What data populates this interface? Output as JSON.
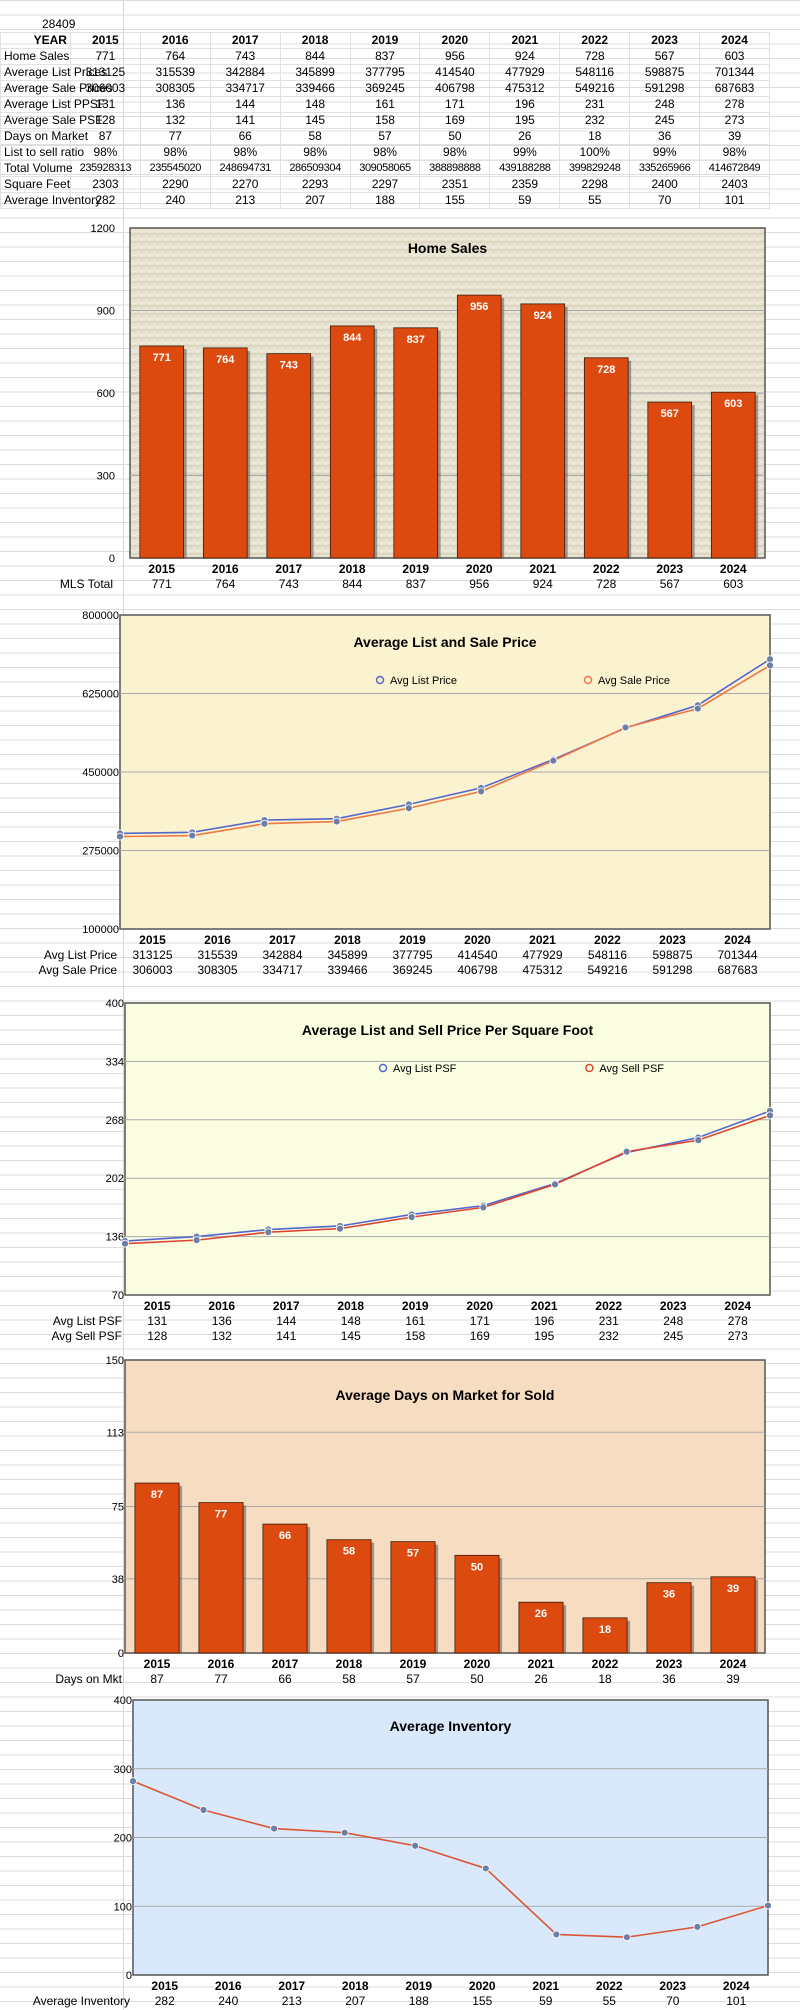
{
  "zip": "28409",
  "table": {
    "header": "YEAR",
    "years": [
      "2015",
      "2016",
      "2017",
      "2018",
      "2019",
      "2020",
      "2021",
      "2022",
      "2023",
      "2024"
    ],
    "rows": [
      {
        "label": "Home Sales",
        "values": [
          "771",
          "764",
          "743",
          "844",
          "837",
          "956",
          "924",
          "728",
          "567",
          "603"
        ]
      },
      {
        "label": "Average List Prices",
        "values": [
          "313125",
          "315539",
          "342884",
          "345899",
          "377795",
          "414540",
          "477929",
          "548116",
          "598875",
          "701344"
        ]
      },
      {
        "label": "Average Sale Prices",
        "values": [
          "306003",
          "308305",
          "334717",
          "339466",
          "369245",
          "406798",
          "475312",
          "549216",
          "591298",
          "687683"
        ]
      },
      {
        "label": "Average List PPSF",
        "values": [
          "131",
          "136",
          "144",
          "148",
          "161",
          "171",
          "196",
          "231",
          "248",
          "278"
        ]
      },
      {
        "label": "Average Sale PSF",
        "values": [
          "128",
          "132",
          "141",
          "145",
          "158",
          "169",
          "195",
          "232",
          "245",
          "273"
        ]
      },
      {
        "label": "Days on Market",
        "values": [
          "87",
          "77",
          "66",
          "58",
          "57",
          "50",
          "26",
          "18",
          "36",
          "39"
        ]
      },
      {
        "label": "List to sell ratio",
        "values": [
          "98%",
          "98%",
          "98%",
          "98%",
          "98%",
          "98%",
          "99%",
          "100%",
          "99%",
          "98%"
        ]
      },
      {
        "label": "Total Volume",
        "values": [
          "235928313",
          "235545020",
          "248694731",
          "286509304",
          "309058065",
          "388898888",
          "439188288",
          "399829248",
          "335265966",
          "414672849"
        ],
        "small": true
      },
      {
        "label": "Square Feet",
        "values": [
          "2303",
          "2290",
          "2270",
          "2293",
          "2297",
          "2351",
          "2359",
          "2298",
          "2400",
          "2403"
        ]
      },
      {
        "label": "Average Inventory",
        "values": [
          "282",
          "240",
          "213",
          "207",
          "188",
          "155",
          "59",
          "55",
          "70",
          "101"
        ]
      }
    ]
  },
  "chart_data": [
    {
      "type": "bar",
      "title": "Home Sales",
      "categories": [
        "2015",
        "2016",
        "2017",
        "2018",
        "2019",
        "2020",
        "2021",
        "2022",
        "2023",
        "2024"
      ],
      "values": [
        771,
        764,
        743,
        844,
        837,
        956,
        924,
        728,
        567,
        603
      ],
      "ylim": [
        0,
        1200
      ],
      "yticks": [
        "0",
        "300",
        "600",
        "900",
        "1200"
      ],
      "bar_color": "#dd4a10",
      "plot_bg": "#e7e2cf",
      "grid": true,
      "rows_below": [
        {
          "label": "MLS Total",
          "values": [
            "771",
            "764",
            "743",
            "844",
            "837",
            "956",
            "924",
            "728",
            "567",
            "603"
          ]
        }
      ]
    },
    {
      "type": "line",
      "title": "Average List and Sale Price",
      "categories": [
        "2015",
        "2016",
        "2017",
        "2018",
        "2019",
        "2020",
        "2021",
        "2022",
        "2023",
        "2024"
      ],
      "series": [
        {
          "name": "Avg List Price",
          "values": [
            313125,
            315539,
            342884,
            345899,
            377795,
            414540,
            477929,
            548116,
            598875,
            701344
          ],
          "color": "#5566cc"
        },
        {
          "name": "Avg Sale Price",
          "values": [
            306003,
            308305,
            334717,
            339466,
            369245,
            406798,
            475312,
            549216,
            591298,
            687683
          ],
          "color": "#ee7744"
        }
      ],
      "ylim": [
        100000,
        800000
      ],
      "yticks": [
        "100000",
        "275000",
        "450000",
        "625000",
        "800000"
      ],
      "plot_bg": "#fbf3cf",
      "grid": true,
      "legend": "top-right",
      "rows_below": [
        {
          "label": "Avg List Price",
          "values": [
            "313125",
            "315539",
            "342884",
            "345899",
            "377795",
            "414540",
            "477929",
            "548116",
            "598875",
            "701344"
          ]
        },
        {
          "label": "Avg Sale Price",
          "values": [
            "306003",
            "308305",
            "334717",
            "339466",
            "369245",
            "406798",
            "475312",
            "549216",
            "591298",
            "687683"
          ]
        }
      ]
    },
    {
      "type": "line",
      "title": "Average List and Sell Price Per Square Foot",
      "categories": [
        "2015",
        "2016",
        "2017",
        "2018",
        "2019",
        "2020",
        "2021",
        "2022",
        "2023",
        "2024"
      ],
      "series": [
        {
          "name": "Avg List PSF",
          "values": [
            131,
            136,
            144,
            148,
            161,
            171,
            196,
            231,
            248,
            278
          ],
          "color": "#5566cc"
        },
        {
          "name": "Avg Sell PSF",
          "values": [
            128,
            132,
            141,
            145,
            158,
            169,
            195,
            232,
            245,
            273
          ],
          "color": "#dd4433"
        }
      ],
      "ylim": [
        70,
        400
      ],
      "yticks": [
        "70",
        "136",
        "202",
        "268",
        "334",
        "400"
      ],
      "plot_bg": "#fbfde0",
      "grid": true,
      "legend": "top-right",
      "rows_below": [
        {
          "label": "Avg List PSF",
          "values": [
            "131",
            "136",
            "144",
            "148",
            "161",
            "171",
            "196",
            "231",
            "248",
            "278"
          ]
        },
        {
          "label": "Avg Sell PSF",
          "values": [
            "128",
            "132",
            "141",
            "145",
            "158",
            "169",
            "195",
            "232",
            "245",
            "273"
          ]
        }
      ]
    },
    {
      "type": "bar",
      "title": "Average Days on Market for Sold",
      "categories": [
        "2015",
        "2016",
        "2017",
        "2018",
        "2019",
        "2020",
        "2021",
        "2022",
        "2023",
        "2024"
      ],
      "values": [
        87,
        77,
        66,
        58,
        57,
        50,
        26,
        18,
        36,
        39
      ],
      "ylim": [
        0,
        150
      ],
      "yticks": [
        "0",
        "38",
        "75",
        "113",
        "150"
      ],
      "bar_color": "#dd4a10",
      "plot_bg": "#f6dcc0",
      "grid": true,
      "rows_below": [
        {
          "label": "Days on Mkt",
          "values": [
            "87",
            "77",
            "66",
            "58",
            "57",
            "50",
            "26",
            "18",
            "36",
            "39"
          ]
        }
      ]
    },
    {
      "type": "line",
      "title": "Average Inventory",
      "categories": [
        "2015",
        "2016",
        "2017",
        "2018",
        "2019",
        "2020",
        "2021",
        "2022",
        "2023",
        "2024"
      ],
      "series": [
        {
          "values": [
            282,
            240,
            213,
            207,
            188,
            155,
            59,
            55,
            70,
            101
          ],
          "color": "#dd5533"
        }
      ],
      "ylim": [
        0,
        400
      ],
      "yticks": [
        "0",
        "100",
        "200",
        "300",
        "400"
      ],
      "plot_bg": "#d9e9fb",
      "grid": true,
      "rows_below": [
        {
          "label": "Average Inventory",
          "values": [
            "282",
            "240",
            "213",
            "207",
            "188",
            "155",
            "59",
            "55",
            "70",
            "101"
          ]
        }
      ]
    }
  ]
}
